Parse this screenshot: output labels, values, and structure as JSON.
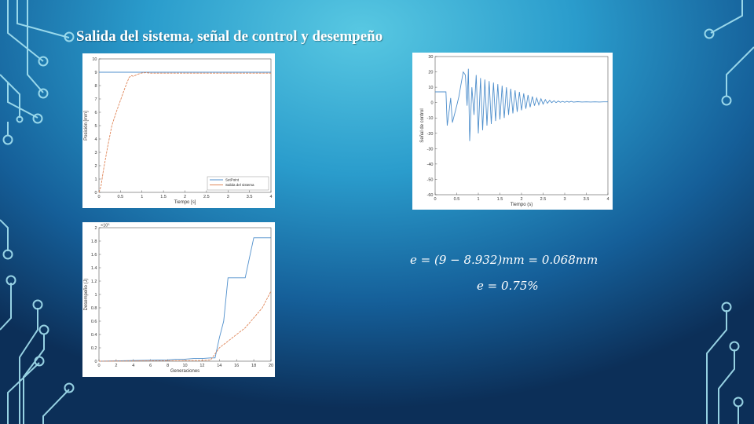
{
  "slide": {
    "title": "Salida del sistema, señal de control y desempeño",
    "colors": {
      "accent": "#ffffff",
      "series_blue": "#4f8fcc",
      "series_orange": "#e0875a"
    }
  },
  "formulas": {
    "error_mm": "e = (9 − 8.932)mm = 0.068mm",
    "error_percent": "e = 0.75%"
  },
  "chart_data": [
    {
      "id": "output",
      "type": "line",
      "title": "",
      "xlabel": "Tiempo [s]",
      "ylabel": "Posición [mm]",
      "xlim": [
        0,
        4
      ],
      "ylim": [
        0,
        10
      ],
      "xticks": [
        0,
        0.5,
        1,
        1.5,
        2,
        2.5,
        3,
        3.5,
        4
      ],
      "xtick_labels": [
        "0",
        "0.5",
        "1",
        "1.5",
        "2",
        "2.5",
        "3",
        "3.5",
        "4"
      ],
      "yticks": [
        0,
        1,
        2,
        3,
        4,
        5,
        6,
        7,
        8,
        9,
        10
      ],
      "ytick_labels": [
        "0",
        "1",
        "2",
        "3",
        "4",
        "5",
        "6",
        "7",
        "8",
        "9",
        "10"
      ],
      "legend": "bottom-right",
      "series": [
        {
          "name": "SetPoint",
          "color": "#4f8fcc",
          "x": [
            0,
            4
          ],
          "y": [
            9,
            9
          ]
        },
        {
          "name": "Salida del sistema",
          "color": "#e0875a",
          "x": [
            0,
            0.05,
            0.1,
            0.2,
            0.3,
            0.4,
            0.5,
            0.6,
            0.7,
            0.75,
            0.8,
            0.9,
            1.0,
            1.1,
            1.2,
            1.5,
            2,
            2.5,
            3,
            3.5,
            4
          ],
          "y": [
            0,
            0.5,
            1.6,
            3.4,
            5.0,
            6.0,
            6.9,
            7.8,
            8.6,
            8.75,
            8.7,
            8.85,
            8.95,
            8.97,
            8.93,
            8.93,
            8.93,
            8.93,
            8.93,
            8.93,
            8.93
          ]
        }
      ]
    },
    {
      "id": "control",
      "type": "line",
      "title": "",
      "xlabel": "Tiempo (s)",
      "ylabel": "Señal de control",
      "xlim": [
        0,
        4
      ],
      "ylim": [
        -60,
        30
      ],
      "xticks": [
        0,
        0.5,
        1,
        1.5,
        2,
        2.5,
        3,
        3.5,
        4
      ],
      "xtick_labels": [
        "0",
        "0.5",
        "1",
        "1.5",
        "2",
        "2.5",
        "3",
        "3.5",
        "4"
      ],
      "yticks": [
        -60,
        -50,
        -40,
        -30,
        -20,
        -10,
        0,
        10,
        20,
        30
      ],
      "ytick_labels": [
        "-60",
        "-50",
        "-40",
        "-30",
        "-20",
        "-10",
        "0",
        "10",
        "20",
        "30"
      ],
      "legend": "none",
      "series": [
        {
          "color": "#4f8fcc",
          "x": [
            0,
            0.25,
            0.28,
            0.33,
            0.36,
            0.4,
            0.5,
            0.55,
            0.6,
            0.65,
            0.7,
            0.74,
            0.77,
            0.8,
            0.85,
            0.9,
            0.95,
            1.0,
            1.05,
            1.1,
            1.15,
            1.2,
            1.25,
            1.3,
            1.35,
            1.4,
            1.45,
            1.5,
            1.55,
            1.6,
            1.65,
            1.7,
            1.75,
            1.8,
            1.85,
            1.9,
            1.95,
            2.0,
            2.05,
            2.1,
            2.15,
            2.2,
            2.25,
            2.3,
            2.35,
            2.4,
            2.45,
            2.5,
            2.55,
            2.6,
            2.65,
            2.7,
            2.75,
            2.8,
            2.85,
            2.9,
            2.95,
            3.0,
            3.05,
            3.1,
            3.15,
            3.2,
            3.3,
            3.4,
            3.5,
            3.6,
            3.7,
            3.8,
            3.9,
            4.0
          ],
          "y": [
            7,
            7,
            -15,
            -4,
            3,
            -13,
            -2,
            4,
            12,
            20,
            18,
            -2,
            22,
            -25,
            10,
            -8,
            18,
            -20,
            16,
            -18,
            15,
            -15,
            14,
            -14,
            13,
            -12,
            12,
            -11,
            11,
            -10,
            10,
            -8,
            9,
            -7,
            8,
            -6,
            7,
            -5,
            6,
            -4,
            5,
            -3,
            4,
            -2,
            3,
            -1.5,
            2.5,
            -1,
            2,
            -0.5,
            1.5,
            0,
            1.2,
            0,
            1,
            0.2,
            0.8,
            0.2,
            0.8,
            0.3,
            0.8,
            0.3,
            0.6,
            0.4,
            0.5,
            0.4,
            0.5,
            0.4,
            0.5,
            0.5
          ]
        }
      ]
    },
    {
      "id": "performance",
      "type": "line",
      "title": "",
      "xlabel": "Generaciones",
      "ylabel": "Desempeño (J)",
      "exponent_label": "×10⁵",
      "xlim": [
        0,
        20
      ],
      "ylim": [
        0,
        2
      ],
      "xticks": [
        0,
        2,
        4,
        6,
        8,
        10,
        12,
        14,
        16,
        18,
        20
      ],
      "xtick_labels": [
        "0",
        "2",
        "4",
        "6",
        "8",
        "10",
        "12",
        "14",
        "16",
        "18",
        "20"
      ],
      "yticks": [
        0,
        0.2,
        0.4,
        0.6,
        0.8,
        1,
        1.2,
        1.4,
        1.6,
        1.8,
        2
      ],
      "ytick_labels": [
        "0",
        "0.2",
        "0.4",
        "0.6",
        "0.8",
        "1",
        "1.2",
        "1.4",
        "1.6",
        "1.8",
        "2"
      ],
      "legend": "none",
      "series": [
        {
          "color": "#4f8fcc",
          "x": [
            0,
            8,
            9,
            10,
            11,
            12,
            13,
            13.5,
            14,
            14.5,
            15,
            16,
            17,
            17.5,
            18,
            18.2,
            19,
            20
          ],
          "y": [
            0,
            0.02,
            0.03,
            0.03,
            0.04,
            0.04,
            0.05,
            0.05,
            0.35,
            0.6,
            1.25,
            1.25,
            1.25,
            1.55,
            1.85,
            1.85,
            1.85,
            1.85
          ]
        },
        {
          "color": "#e0875a",
          "x": [
            0,
            5,
            10,
            12,
            13,
            14,
            15,
            16,
            17,
            18,
            19,
            20
          ],
          "y": [
            0,
            0.005,
            0.01,
            0.01,
            0.02,
            0.2,
            0.3,
            0.4,
            0.5,
            0.65,
            0.8,
            1.05
          ]
        }
      ]
    }
  ]
}
